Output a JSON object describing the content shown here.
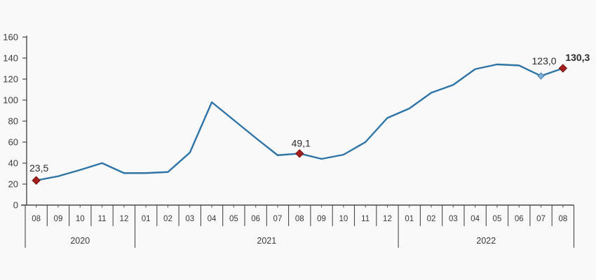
{
  "chart_data": {
    "type": "line",
    "title": "",
    "xlabel": "",
    "ylabel": "",
    "ylim": [
      0,
      160
    ],
    "ytick_step": 20,
    "ytick_labels": [
      "0",
      "20",
      "40",
      "60",
      "80",
      "100",
      "120",
      "140",
      "160"
    ],
    "grid": false,
    "legend": "none",
    "decimal_separator": ",",
    "categories": [
      "2020-08",
      "2020-09",
      "2020-10",
      "2020-11",
      "2020-12",
      "2021-01",
      "2021-02",
      "2021-03",
      "2021-04",
      "2021-05",
      "2021-06",
      "2021-07",
      "2021-08",
      "2021-09",
      "2021-10",
      "2021-11",
      "2021-12",
      "2022-01",
      "2022-02",
      "2022-03",
      "2022-04",
      "2022-05",
      "2022-06",
      "2022-07",
      "2022-08"
    ],
    "month_labels": [
      "08",
      "09",
      "10",
      "11",
      "12",
      "01",
      "02",
      "03",
      "04",
      "05",
      "06",
      "07",
      "08",
      "09",
      "10",
      "11",
      "12",
      "01",
      "02",
      "03",
      "04",
      "05",
      "06",
      "07",
      "08"
    ],
    "year_groups": [
      {
        "label": "2020",
        "months": 5
      },
      {
        "label": "2021",
        "months": 12
      },
      {
        "label": "2022",
        "months": 8
      }
    ],
    "values": [
      23.5,
      27.5,
      33.5,
      40.0,
      30.5,
      30.5,
      31.5,
      50.0,
      98.0,
      81.0,
      64.0,
      47.5,
      49.1,
      44.0,
      48.0,
      60.0,
      83.0,
      92.0,
      107.0,
      114.5,
      129.5,
      134.0,
      133.0,
      123.0,
      130.3
    ],
    "annotations": [
      {
        "index": 0,
        "text": "23,5",
        "marker": "red-diamond",
        "bold": false
      },
      {
        "index": 12,
        "text": "49,1",
        "marker": "red-diamond",
        "bold": false
      },
      {
        "index": 23,
        "text": "123,0",
        "marker": "blue-diamond",
        "bold": false
      },
      {
        "index": 24,
        "text": "130,3",
        "marker": "red-diamond",
        "bold": true
      }
    ],
    "colors": {
      "line": "#2E74A6",
      "marker_red_fill": "#A61E1B",
      "marker_red_stroke": "#701310",
      "marker_blue_fill": "#7FAFD6",
      "marker_blue_stroke": "#4E86B4",
      "axis": "#4A4A4A",
      "tick_text": "#3A3A3A",
      "label_text": "#2B2B2B",
      "background": "#f9f9f9"
    }
  }
}
